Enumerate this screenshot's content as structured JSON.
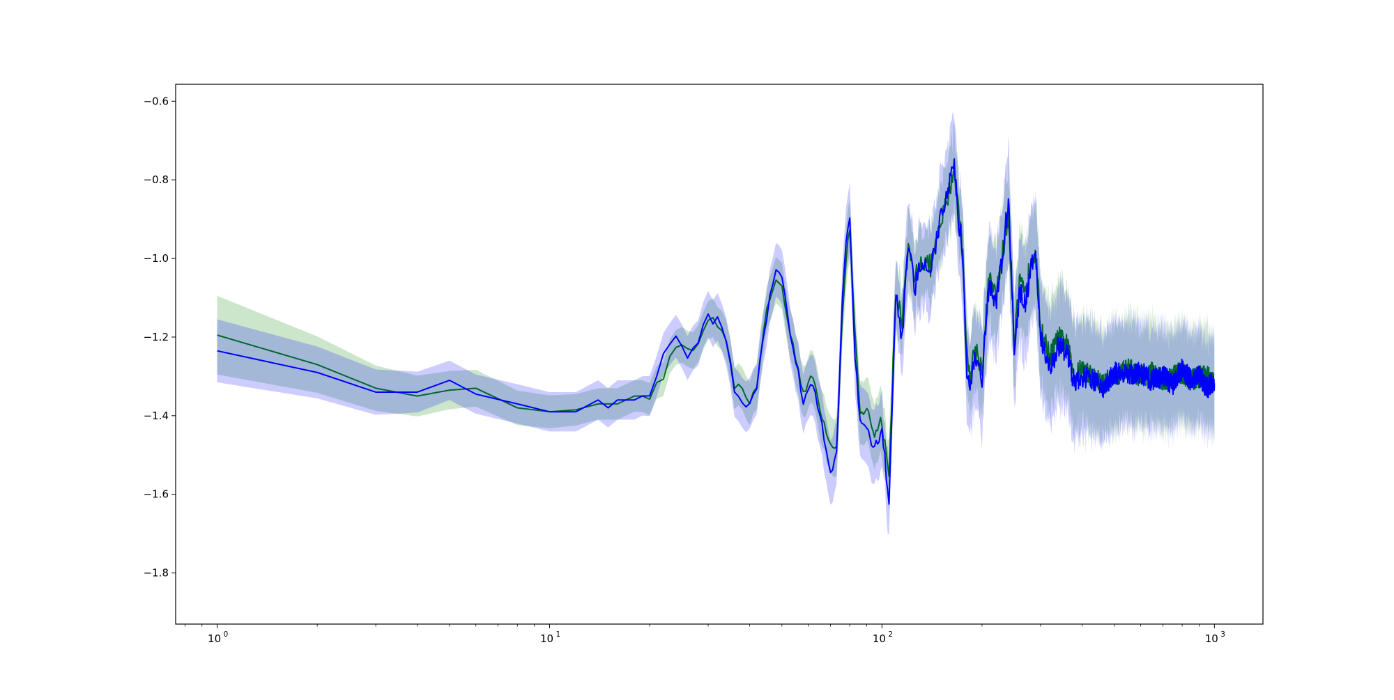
{
  "chart_data": {
    "type": "line",
    "title": "",
    "xlabel": "",
    "ylabel": "",
    "xscale": "log",
    "xlim": [
      0.75,
      1400
    ],
    "ylim": [
      -1.93,
      -0.557
    ],
    "grid": false,
    "legend": null,
    "x_ticks": [
      {
        "value": 1,
        "label": "10",
        "exp": "0"
      },
      {
        "value": 10,
        "label": "10",
        "exp": "1"
      },
      {
        "value": 100,
        "label": "10",
        "exp": "2"
      },
      {
        "value": 1000,
        "label": "10",
        "exp": "3"
      }
    ],
    "y_ticks": [
      {
        "value": -0.6,
        "label": "−0.6"
      },
      {
        "value": -0.8,
        "label": "−0.8"
      },
      {
        "value": -1.0,
        "label": "−1.0"
      },
      {
        "value": -1.2,
        "label": "−1.2"
      },
      {
        "value": -1.4,
        "label": "−1.4"
      },
      {
        "value": -1.6,
        "label": "−1.6"
      },
      {
        "value": -1.8,
        "label": "−1.8"
      }
    ],
    "series": [
      {
        "color": "#008000",
        "band_color": "#008000",
        "band_opacity": 0.2,
        "band_width": [
          0.1,
          0.08,
          0.06,
          0.05,
          0.045,
          0.04,
          0.04,
          0.05,
          0.06,
          0.08,
          0.09,
          0.12,
          0.14,
          0.13,
          0.12
        ],
        "x": [
          1,
          2,
          3,
          4,
          5,
          6,
          8,
          10,
          12,
          14,
          16,
          18,
          20,
          22,
          24,
          26,
          28,
          30,
          32,
          34,
          36,
          38,
          40,
          42,
          44,
          46,
          48,
          50,
          52,
          55,
          58,
          62,
          66,
          70,
          73,
          76,
          78,
          80,
          83,
          86,
          90,
          95,
          100,
          105,
          110,
          115,
          120,
          125,
          130,
          140,
          150,
          160,
          165,
          170,
          175,
          180,
          185,
          190,
          200,
          210,
          220,
          230,
          240,
          250,
          260,
          270,
          280,
          290,
          300,
          320,
          340,
          360,
          380,
          400,
          430,
          460,
          500,
          550,
          600,
          650,
          700,
          750,
          800,
          850,
          900,
          950,
          1000
        ],
        "y": [
          -1.195,
          -1.27,
          -1.33,
          -1.35,
          -1.335,
          -1.33,
          -1.38,
          -1.39,
          -1.385,
          -1.37,
          -1.37,
          -1.35,
          -1.35,
          -1.3,
          -1.22,
          -1.24,
          -1.22,
          -1.15,
          -1.17,
          -1.22,
          -1.32,
          -1.34,
          -1.36,
          -1.33,
          -1.18,
          -1.1,
          -1.06,
          -1.07,
          -1.16,
          -1.25,
          -1.34,
          -1.3,
          -1.4,
          -1.47,
          -1.48,
          -1.15,
          -1.0,
          -0.92,
          -1.2,
          -1.4,
          -1.38,
          -1.45,
          -1.4,
          -1.57,
          -1.07,
          -1.16,
          -0.98,
          -1.06,
          -1.0,
          -1.02,
          -0.92,
          -0.82,
          -0.77,
          -0.88,
          -0.97,
          -1.25,
          -1.3,
          -1.22,
          -1.28,
          -1.05,
          -1.1,
          -0.99,
          -0.89,
          -1.2,
          -1.06,
          -1.1,
          -1.0,
          -0.98,
          -1.18,
          -1.25,
          -1.2,
          -1.22,
          -1.3,
          -1.28,
          -1.3,
          -1.32,
          -1.3,
          -1.28,
          -1.3,
          -1.29,
          -1.31,
          -1.3,
          -1.29,
          -1.31,
          -1.3,
          -1.3,
          -1.32
        ]
      },
      {
        "color": "#0000ff",
        "band_color": "#0000ff",
        "band_opacity": 0.2,
        "band_width": [
          0.08,
          0.07,
          0.06,
          0.05,
          0.05,
          0.05,
          0.05,
          0.06,
          0.07,
          0.09,
          0.11,
          0.14,
          0.15,
          0.13,
          0.12
        ],
        "x": [
          1,
          2,
          3,
          4,
          5,
          6,
          8,
          10,
          12,
          14,
          15,
          16,
          18,
          20,
          22,
          24,
          26,
          28,
          30,
          31,
          32,
          34,
          36,
          38,
          40,
          42,
          44,
          46,
          48,
          50,
          52,
          55,
          58,
          62,
          66,
          70,
          73,
          76,
          78,
          80,
          83,
          86,
          90,
          95,
          100,
          105,
          110,
          115,
          120,
          125,
          130,
          140,
          150,
          160,
          165,
          170,
          175,
          180,
          185,
          190,
          200,
          210,
          220,
          230,
          240,
          250,
          260,
          270,
          280,
          290,
          300,
          320,
          340,
          360,
          380,
          400,
          430,
          460,
          500,
          550,
          600,
          650,
          700,
          750,
          800,
          850,
          900,
          950,
          1000
        ],
        "y": [
          -1.235,
          -1.29,
          -1.34,
          -1.34,
          -1.31,
          -1.345,
          -1.37,
          -1.39,
          -1.39,
          -1.36,
          -1.38,
          -1.36,
          -1.36,
          -1.34,
          -1.25,
          -1.19,
          -1.25,
          -1.22,
          -1.13,
          -1.16,
          -1.15,
          -1.22,
          -1.33,
          -1.37,
          -1.38,
          -1.32,
          -1.2,
          -1.1,
          -1.02,
          -1.05,
          -1.15,
          -1.26,
          -1.36,
          -1.32,
          -1.43,
          -1.55,
          -1.5,
          -1.1,
          -0.95,
          -0.9,
          -1.25,
          -1.42,
          -1.44,
          -1.48,
          -1.45,
          -1.6,
          -1.1,
          -1.2,
          -0.95,
          -1.08,
          -1.01,
          -1.04,
          -0.9,
          -0.8,
          -0.75,
          -0.9,
          -1.0,
          -1.3,
          -1.32,
          -1.24,
          -1.3,
          -1.06,
          -1.12,
          -1.0,
          -0.85,
          -1.22,
          -1.08,
          -1.12,
          -1.02,
          -1.0,
          -1.2,
          -1.28,
          -1.22,
          -1.24,
          -1.32,
          -1.3,
          -1.31,
          -1.33,
          -1.29,
          -1.3,
          -1.29,
          -1.31,
          -1.3,
          -1.32,
          -1.28,
          -1.31,
          -1.3,
          -1.33,
          -1.31
        ]
      }
    ]
  }
}
